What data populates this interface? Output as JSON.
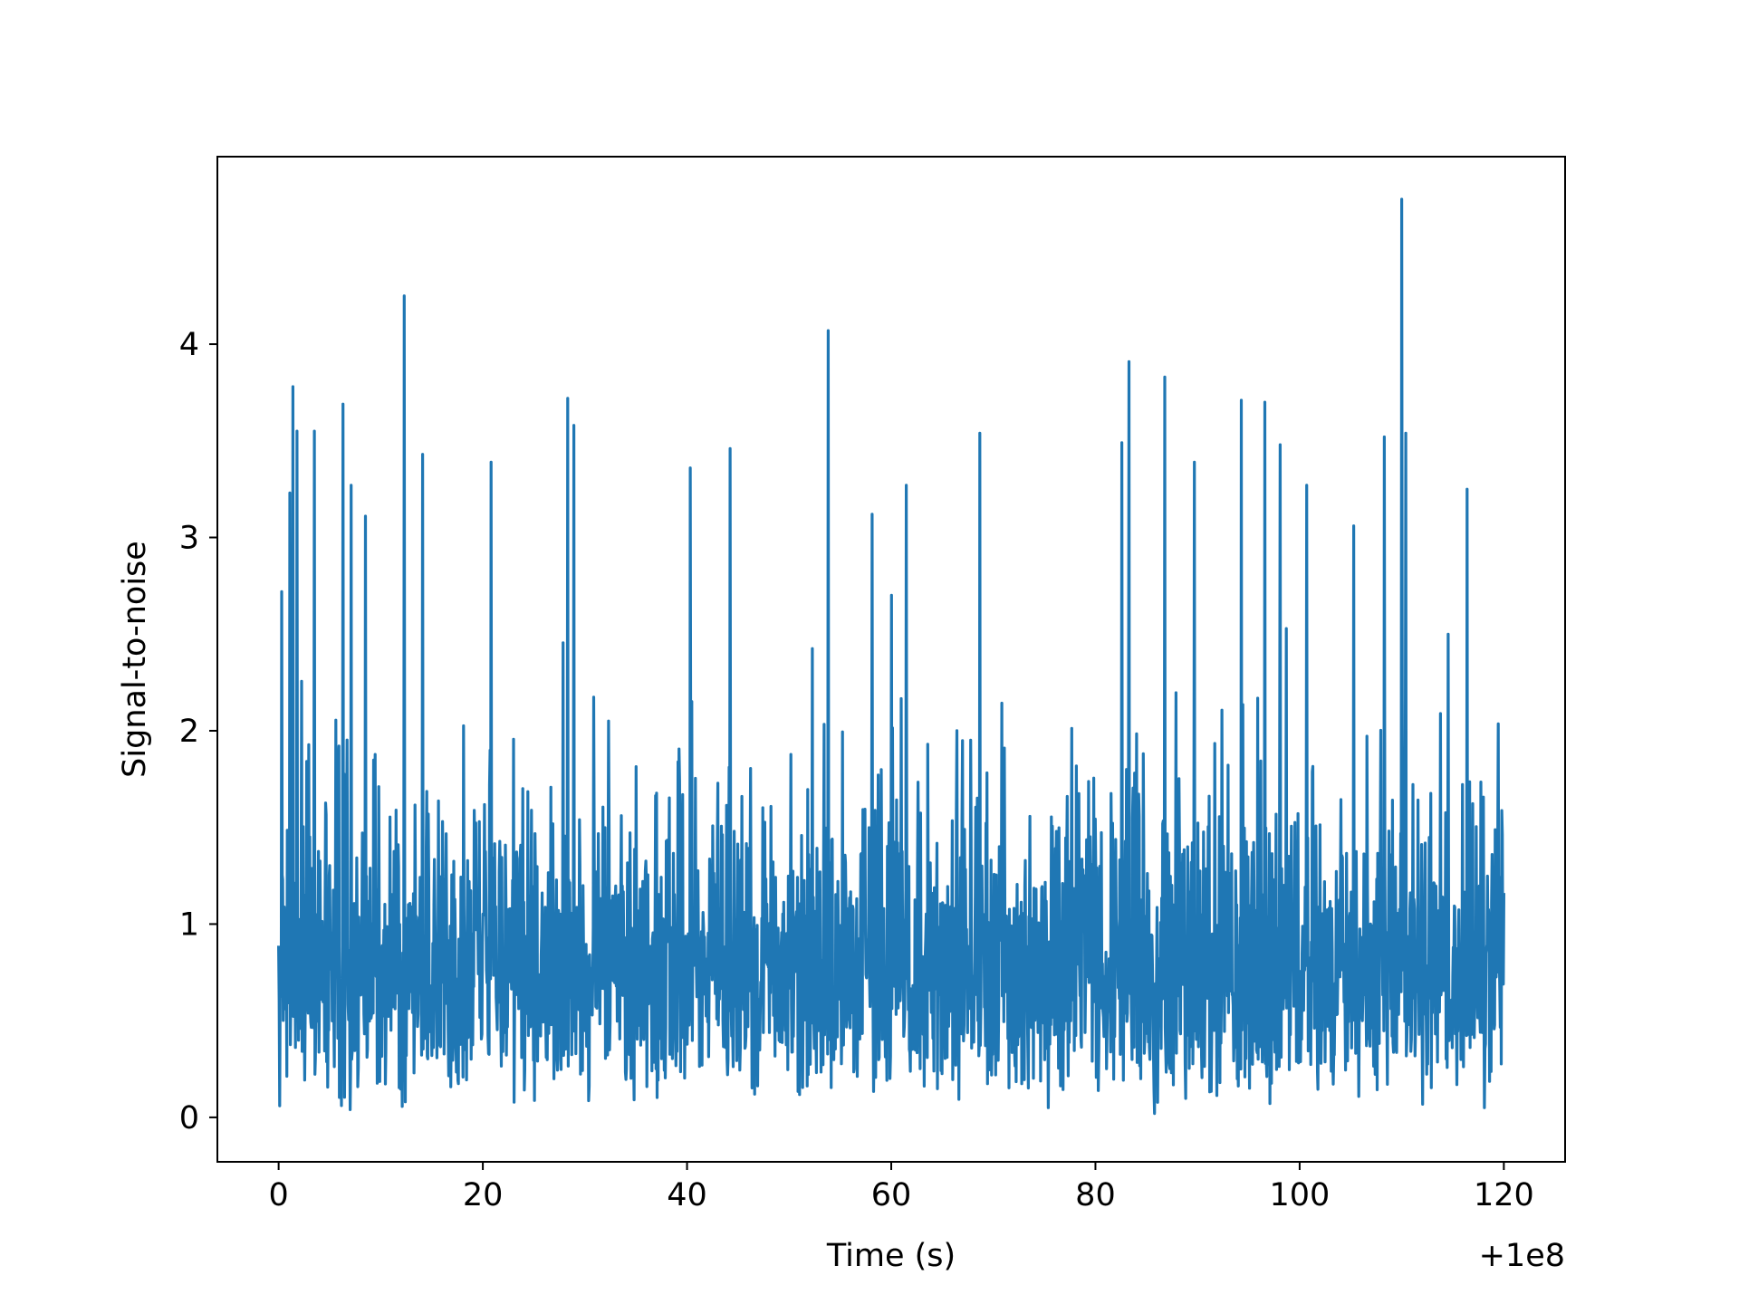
{
  "chart_data": {
    "type": "line",
    "title": "",
    "xlabel": "Time (s)",
    "ylabel": "Signal-to-noise",
    "x_offset_label": "+1e8",
    "xlim": [
      -6,
      126
    ],
    "ylim": [
      -0.23,
      4.97
    ],
    "x_ticks": [
      0,
      20,
      40,
      60,
      80,
      100,
      120
    ],
    "y_ticks": [
      0,
      1,
      2,
      3,
      4
    ],
    "x_tick_labels": [
      "0",
      "20",
      "40",
      "60",
      "80",
      "100",
      "120"
    ],
    "y_tick_labels": [
      "0",
      "1",
      "2",
      "3",
      "4"
    ],
    "grid": false,
    "series": [
      {
        "color": "#1f77b4",
        "x_range": [
          0,
          120
        ],
        "sample_count": 2400,
        "typical_range": [
          0.1,
          2.6
        ],
        "peaks": [
          {
            "x": 0.3,
            "y": 2.72
          },
          {
            "x": 1.1,
            "y": 3.23
          },
          {
            "x": 1.4,
            "y": 3.78
          },
          {
            "x": 1.8,
            "y": 3.55
          },
          {
            "x": 3.5,
            "y": 3.55
          },
          {
            "x": 6.3,
            "y": 3.69
          },
          {
            "x": 7.1,
            "y": 3.27
          },
          {
            "x": 8.5,
            "y": 3.11
          },
          {
            "x": 12.3,
            "y": 4.25
          },
          {
            "x": 14.1,
            "y": 3.43
          },
          {
            "x": 20.8,
            "y": 3.39
          },
          {
            "x": 28.3,
            "y": 3.72
          },
          {
            "x": 28.9,
            "y": 3.58
          },
          {
            "x": 40.3,
            "y": 3.36
          },
          {
            "x": 44.2,
            "y": 3.46
          },
          {
            "x": 53.8,
            "y": 4.07
          },
          {
            "x": 58.1,
            "y": 3.12
          },
          {
            "x": 61.5,
            "y": 3.27
          },
          {
            "x": 68.7,
            "y": 3.54
          },
          {
            "x": 82.6,
            "y": 3.49
          },
          {
            "x": 83.3,
            "y": 3.91
          },
          {
            "x": 86.8,
            "y": 3.83
          },
          {
            "x": 89.7,
            "y": 3.39
          },
          {
            "x": 94.3,
            "y": 3.71
          },
          {
            "x": 96.6,
            "y": 3.7
          },
          {
            "x": 98.1,
            "y": 3.48
          },
          {
            "x": 100.7,
            "y": 3.27
          },
          {
            "x": 105.3,
            "y": 3.06
          },
          {
            "x": 108.3,
            "y": 3.52
          },
          {
            "x": 110.0,
            "y": 4.75
          },
          {
            "x": 110.4,
            "y": 3.54
          },
          {
            "x": 116.4,
            "y": 3.25
          }
        ],
        "dips": [
          {
            "x": 0.1,
            "y": 0.06
          },
          {
            "x": 7.0,
            "y": 0.04
          },
          {
            "x": 75.4,
            "y": 0.05
          },
          {
            "x": 85.8,
            "y": 0.02
          },
          {
            "x": 118.1,
            "y": 0.05
          }
        ]
      }
    ]
  }
}
